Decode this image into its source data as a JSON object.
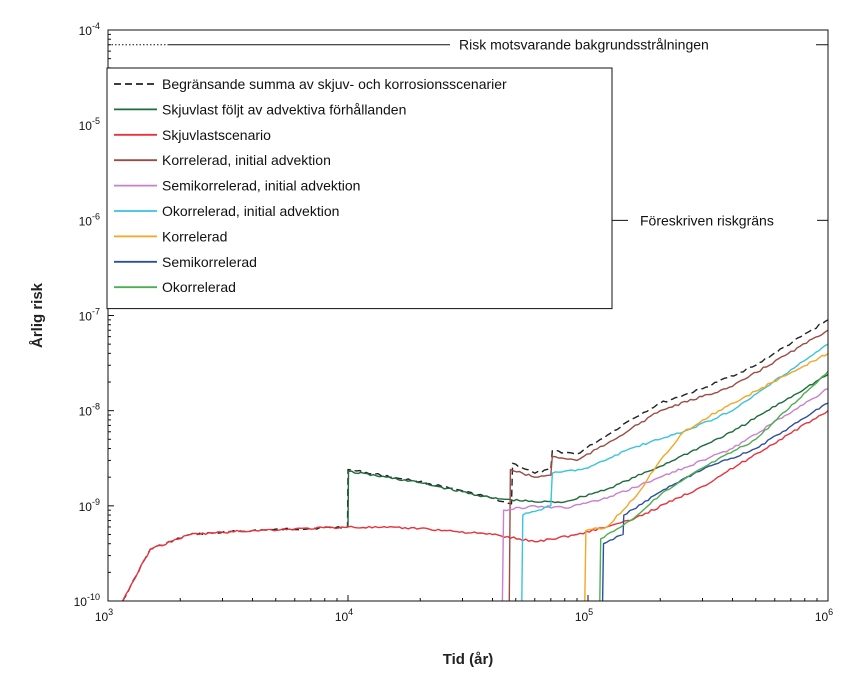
{
  "chart_data": {
    "type": "line",
    "title": "",
    "xlabel": "Tid (år)",
    "ylabel": "Årlig risk",
    "x_scale": "log",
    "y_scale": "log",
    "xlim": [
      1000,
      1000000
    ],
    "ylim": [
      1e-10,
      0.0001
    ],
    "x_ticks": [
      {
        "value": 1000,
        "base": "10",
        "exp": "3"
      },
      {
        "value": 10000,
        "base": "10",
        "exp": "4"
      },
      {
        "value": 100000,
        "base": "10",
        "exp": "5"
      },
      {
        "value": 1000000,
        "base": "10",
        "exp": "6"
      }
    ],
    "y_ticks": [
      {
        "value": 0.0001,
        "base": "10",
        "exp": "-4"
      },
      {
        "value": 1e-05,
        "base": "10",
        "exp": "-5"
      },
      {
        "value": 1e-06,
        "base": "10",
        "exp": "-6"
      },
      {
        "value": 1e-07,
        "base": "10",
        "exp": "-7"
      },
      {
        "value": 1e-08,
        "base": "10",
        "exp": "-8"
      },
      {
        "value": 1e-09,
        "base": "10",
        "exp": "-9"
      },
      {
        "value": 1e-10,
        "base": "10",
        "exp": "-10"
      }
    ],
    "grid": false,
    "legend_position": "top-left",
    "reference_lines": [
      {
        "label": "Risk motsvarande bakgrundsstrålningen",
        "y": 7e-05,
        "style": "dotted-solid"
      },
      {
        "label": "Föreskriven riskgräns",
        "y": 1e-06,
        "style": "dotted-solid"
      }
    ],
    "series": [
      {
        "name": "Begränsande summa av skjuv- och korrosionsscenarier",
        "color": "#222222",
        "dash": "7,4",
        "points": [
          [
            1150,
            1e-10
          ],
          [
            1500,
            3.5e-10
          ],
          [
            2200,
            5e-10
          ],
          [
            4000,
            5.5e-10
          ],
          [
            9950,
            6e-10
          ],
          [
            10000,
            2.4e-09
          ],
          [
            20000,
            1.8e-09
          ],
          [
            40000,
            1.2e-09
          ],
          [
            48000,
            1.05e-09
          ],
          [
            48500,
            2.8e-09
          ],
          [
            60000,
            2.2e-09
          ],
          [
            70000,
            2.4e-09
          ],
          [
            71000,
            3.8e-09
          ],
          [
            90000,
            3.5e-09
          ],
          [
            120000,
            5.5e-09
          ],
          [
            150000,
            8e-09
          ],
          [
            200000,
            1.2e-08
          ],
          [
            300000,
            1.7e-08
          ],
          [
            500000,
            3e-08
          ],
          [
            1000000,
            9e-08
          ]
        ]
      },
      {
        "name": "Skjuvlast följt av advektiva förhållanden",
        "color": "#1e6b3c",
        "dash": "",
        "points": [
          [
            10000,
            6e-10
          ],
          [
            10050,
            2.3e-09
          ],
          [
            20000,
            1.75e-09
          ],
          [
            40000,
            1.2e-09
          ],
          [
            60000,
            1.1e-09
          ],
          [
            80000,
            1.1e-09
          ],
          [
            120000,
            1.5e-09
          ],
          [
            200000,
            2.6e-09
          ],
          [
            400000,
            6e-09
          ],
          [
            1000000,
            2.4e-08
          ]
        ]
      },
      {
        "name": "Skjuvlastscenario",
        "color": "#e8323c",
        "dash": "",
        "points": [
          [
            1150,
            1e-10
          ],
          [
            1500,
            3.5e-10
          ],
          [
            2200,
            5e-10
          ],
          [
            4000,
            5.5e-10
          ],
          [
            10000,
            6e-10
          ],
          [
            20000,
            5.8e-10
          ],
          [
            40000,
            5e-10
          ],
          [
            60000,
            4.2e-10
          ],
          [
            90000,
            5e-10
          ],
          [
            150000,
            7e-10
          ],
          [
            300000,
            1.6e-09
          ],
          [
            1000000,
            1e-08
          ]
        ]
      },
      {
        "name": "Korrelerad, initial advektion",
        "color": "#9e4a44",
        "dash": "",
        "points": [
          [
            47000,
            1e-10
          ],
          [
            47500,
            2.4e-09
          ],
          [
            60000,
            2e-09
          ],
          [
            70000,
            2.1e-09
          ],
          [
            71000,
            3.3e-09
          ],
          [
            90000,
            3e-09
          ],
          [
            120000,
            4.5e-09
          ],
          [
            200000,
            1e-08
          ],
          [
            400000,
            1.8e-08
          ],
          [
            1000000,
            7e-08
          ]
        ]
      },
      {
        "name": "Semikorrelerad, initial advektion",
        "color": "#cc7fcf",
        "dash": "",
        "points": [
          [
            44000,
            1e-10
          ],
          [
            44500,
            9e-10
          ],
          [
            60000,
            1e-09
          ],
          [
            80000,
            9.5e-10
          ],
          [
            120000,
            1.2e-09
          ],
          [
            200000,
            2e-09
          ],
          [
            400000,
            4e-09
          ],
          [
            1000000,
            1.7e-08
          ]
        ]
      },
      {
        "name": "Okorrelerad, initial advektion",
        "color": "#38c3df",
        "dash": "",
        "points": [
          [
            53000,
            1e-10
          ],
          [
            53500,
            8e-10
          ],
          [
            70000,
            1e-09
          ],
          [
            71000,
            2.2e-09
          ],
          [
            100000,
            2.5e-09
          ],
          [
            150000,
            4e-09
          ],
          [
            250000,
            6e-09
          ],
          [
            400000,
            1e-08
          ],
          [
            1000000,
            5e-08
          ]
        ]
      },
      {
        "name": "Korrelerad",
        "color": "#f5a623",
        "dash": "",
        "points": [
          [
            97000,
            1e-10
          ],
          [
            98000,
            5.5e-10
          ],
          [
            120000,
            6e-10
          ],
          [
            160000,
            1.3e-09
          ],
          [
            200000,
            3e-09
          ],
          [
            250000,
            6e-09
          ],
          [
            350000,
            1e-08
          ],
          [
            500000,
            1.6e-08
          ],
          [
            1000000,
            4e-08
          ]
        ]
      },
      {
        "name": "Semikorrelerad",
        "color": "#2d4fa1",
        "dash": "",
        "points": [
          [
            115000,
            1e-10
          ],
          [
            116000,
            4e-10
          ],
          [
            140000,
            5e-10
          ],
          [
            141000,
            8e-10
          ],
          [
            200000,
            1.4e-09
          ],
          [
            300000,
            2.4e-09
          ],
          [
            500000,
            4e-09
          ],
          [
            1000000,
            1.2e-08
          ]
        ]
      },
      {
        "name": "Okorrelerad",
        "color": "#4caf50",
        "dash": "",
        "points": [
          [
            112000,
            1e-10
          ],
          [
            113000,
            4.5e-10
          ],
          [
            150000,
            7e-10
          ],
          [
            200000,
            1.3e-09
          ],
          [
            300000,
            2.5e-09
          ],
          [
            500000,
            5e-09
          ],
          [
            1000000,
            2.6e-08
          ]
        ]
      }
    ]
  }
}
